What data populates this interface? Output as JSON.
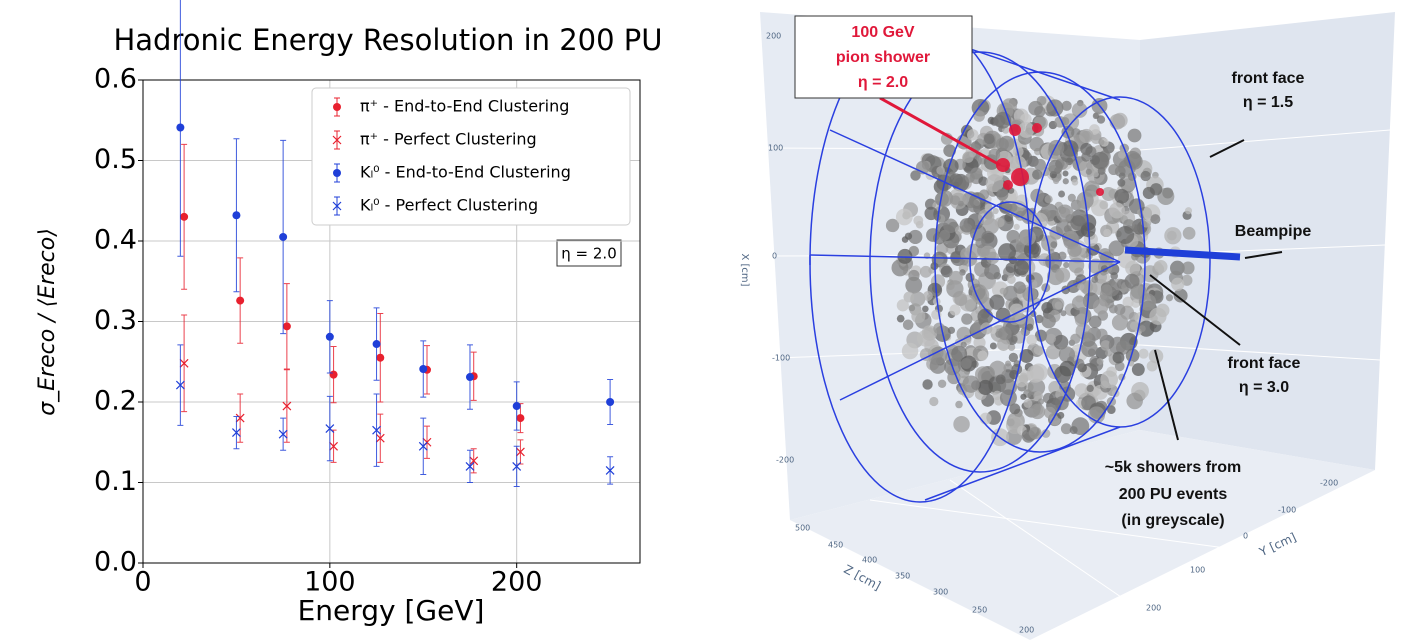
{
  "chart_data": {
    "type": "errorbar",
    "title": "Hadronic Energy Resolution in 200 PU",
    "x_label": "Energy [GeV]",
    "y_label": "σ_Ereco / ⟨Ereco⟩",
    "annotation": "η = 2.0",
    "xlim": [
      0,
      266
    ],
    "xticks": [
      0,
      100,
      200
    ],
    "ylim": [
      0,
      0.6
    ],
    "yticks": [
      {
        "value": 0,
        "label": "0.0"
      },
      0.1,
      0.2,
      0.3,
      0.4,
      0.5,
      0.6
    ],
    "grid": true,
    "legend": "upper right",
    "series": [
      {
        "name": "π⁺ - End-to-End Clustering",
        "color": "#e8202e",
        "marker": "o",
        "x": [
          22,
          52,
          77,
          102,
          127,
          152,
          177,
          202
        ],
        "values": [
          0.43,
          0.326,
          0.294,
          0.234,
          0.255,
          0.24,
          0.232,
          0.18
        ],
        "errors": [
          0.09,
          0.053,
          0.053,
          0.035,
          0.055,
          0.03,
          0.03,
          0.018
        ]
      },
      {
        "name": "π⁺ - Perfect Clustering",
        "color": "#e8202e",
        "marker": "x",
        "x": [
          22,
          52,
          77,
          102,
          127,
          152,
          177,
          202
        ],
        "values": [
          0.248,
          0.18,
          0.195,
          0.145,
          0.155,
          0.15,
          0.127,
          0.138
        ],
        "errors": [
          0.06,
          0.03,
          0.045,
          0.02,
          0.03,
          0.02,
          0.015,
          0.015
        ]
      },
      {
        "name": "Kₗ⁰ - End-to-End Clustering",
        "color": "#1f3fd8",
        "marker": "o",
        "x": [
          20,
          50,
          75,
          100,
          125,
          150,
          175,
          200,
          250
        ],
        "values": [
          0.541,
          0.432,
          0.405,
          0.281,
          0.272,
          0.241,
          0.231,
          0.195,
          0.2
        ],
        "errors": [
          0.16,
          0.095,
          0.12,
          0.045,
          0.045,
          0.035,
          0.04,
          0.03,
          0.028
        ]
      },
      {
        "name": "Kₗ⁰ - Perfect Clustering",
        "color": "#1f3fd8",
        "marker": "x",
        "x": [
          20,
          50,
          75,
          100,
          125,
          150,
          175,
          200,
          250
        ],
        "values": [
          0.221,
          0.162,
          0.16,
          0.167,
          0.165,
          0.145,
          0.12,
          0.12,
          0.115
        ],
        "errors": [
          0.05,
          0.02,
          0.02,
          0.04,
          0.045,
          0.035,
          0.02,
          0.025,
          0.017
        ]
      }
    ]
  },
  "illustration": {
    "callout": [
      "100 GeV",
      "pion shower",
      "η = 2.0"
    ],
    "front_face_outer": [
      "front face",
      "η = 1.5"
    ],
    "beampipe": "Beampipe",
    "front_face_inner": [
      "front face",
      "η = 3.0"
    ],
    "pu_note": [
      "~5k showers from",
      "200 PU events",
      "(in greyscale)"
    ],
    "x_axis_label": "X [cm]",
    "x_ticks": [
      "200",
      "100",
      "0",
      "-100",
      "-200"
    ],
    "y_axis_label": "Y [cm]",
    "y_ticks": [
      "-200",
      "-100",
      "0",
      "100",
      "200"
    ],
    "z_axis_label": "Z [cm]",
    "z_ticks": [
      "500",
      "450",
      "400",
      "350",
      "300",
      "250",
      "200"
    ]
  }
}
